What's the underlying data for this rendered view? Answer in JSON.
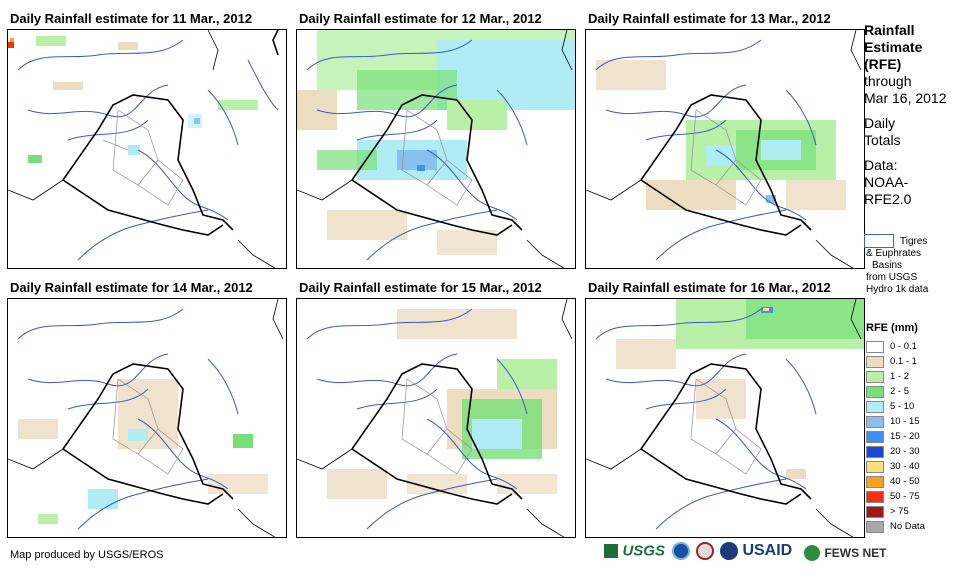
{
  "panels": [
    {
      "title": "Daily Rainfall estimate for 11 Mar., 2012"
    },
    {
      "title": "Daily Rainfall estimate for 12 Mar., 2012"
    },
    {
      "title": "Daily Rainfall estimate for 13 Mar., 2012"
    },
    {
      "title": "Daily Rainfall estimate for 14 Mar., 2012"
    },
    {
      "title": "Daily Rainfall estimate for 15 Mar., 2012"
    },
    {
      "title": "Daily Rainfall estimate for 16 Mar., 2012"
    }
  ],
  "sidebar": {
    "title_line1": "Rainfall",
    "title_line2": "Estimate",
    "title_line3": "(RFE)",
    "through": "through",
    "date": "Mar 16, 2012",
    "daily": "Daily",
    "totals": "Totals",
    "data_label": "Data:",
    "data_src1": "NOAA-",
    "data_src2": "RFE2.0",
    "basin_line1": "Tigres",
    "basin_line2": "& Euphrates",
    "basin_line3": "Basins",
    "basin_line4": "from USGS",
    "basin_line5": "Hydro 1k data"
  },
  "legend": {
    "title": "RFE (mm)",
    "items": [
      {
        "label": "0 - 0.1",
        "color": "#ffffff"
      },
      {
        "label": "0.1 - 1",
        "color": "#ecdcc0"
      },
      {
        "label": "1 - 2",
        "color": "#b8f0a8"
      },
      {
        "label": "2 - 5",
        "color": "#78e078"
      },
      {
        "label": "5 - 10",
        "color": "#b0ecf4"
      },
      {
        "label": "10 - 15",
        "color": "#88c0f0"
      },
      {
        "label": "15 - 20",
        "color": "#4090f0"
      },
      {
        "label": "20 - 30",
        "color": "#1848d8"
      },
      {
        "label": "30 - 40",
        "color": "#fce080"
      },
      {
        "label": "40 - 50",
        "color": "#f8a020"
      },
      {
        "label": "50 - 75",
        "color": "#f03010"
      },
      {
        "label": "> 75",
        "color": "#a01818"
      },
      {
        "label": "No Data",
        "color": "#a8a8a8"
      }
    ]
  },
  "footer": {
    "credit": "Map produced by USGS/EROS"
  },
  "logos": {
    "usgs": "USGS",
    "usaid": "USAID",
    "fews": "FEWS NET"
  }
}
